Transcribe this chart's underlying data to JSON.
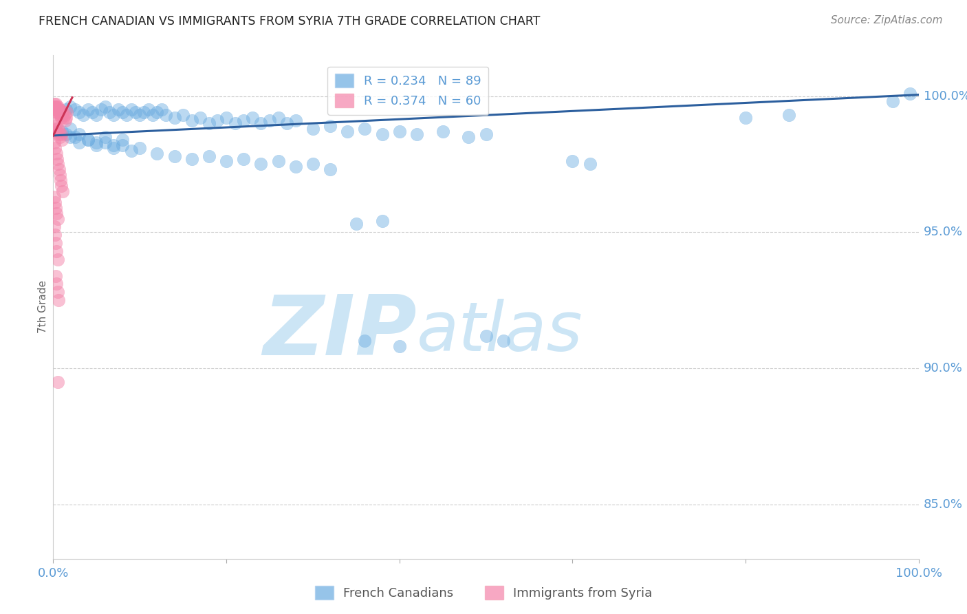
{
  "title": "FRENCH CANADIAN VS IMMIGRANTS FROM SYRIA 7TH GRADE CORRELATION CHART",
  "source": "Source: ZipAtlas.com",
  "ylabel": "7th Grade",
  "right_ytick_labels": [
    "100.0%",
    "95.0%",
    "90.0%",
    "85.0%"
  ],
  "right_ytick_vals": [
    100.0,
    95.0,
    90.0,
    85.0
  ],
  "legend_labels_bottom": [
    "French Canadians",
    "Immigrants from Syria"
  ],
  "blue_color": "#6aabe0",
  "pink_color": "#f484aa",
  "trendline_blue": "#2c5f9e",
  "trendline_pink": "#cc3355",
  "watermark_zip": "ZIP",
  "watermark_atlas": "atlas",
  "watermark_color": "#cce5f5",
  "axis_color": "#5b9bd5",
  "grid_color": "#cccccc",
  "xlim": [
    0,
    100
  ],
  "ylim": [
    83.0,
    101.5
  ],
  "blue_trendline_x": [
    0,
    100
  ],
  "blue_trendline_y": [
    98.55,
    100.05
  ],
  "pink_trendline_x": [
    0.0,
    2.2
  ],
  "pink_trendline_y": [
    98.55,
    99.95
  ],
  "blue_scatter": [
    [
      1.0,
      99.4
    ],
    [
      1.5,
      99.5
    ],
    [
      2.0,
      99.6
    ],
    [
      2.5,
      99.5
    ],
    [
      3.0,
      99.4
    ],
    [
      3.5,
      99.3
    ],
    [
      4.0,
      99.5
    ],
    [
      4.5,
      99.4
    ],
    [
      5.0,
      99.3
    ],
    [
      5.5,
      99.5
    ],
    [
      6.0,
      99.6
    ],
    [
      6.5,
      99.4
    ],
    [
      7.0,
      99.3
    ],
    [
      7.5,
      99.5
    ],
    [
      8.0,
      99.4
    ],
    [
      8.5,
      99.3
    ],
    [
      9.0,
      99.5
    ],
    [
      9.5,
      99.4
    ],
    [
      10.0,
      99.3
    ],
    [
      10.5,
      99.4
    ],
    [
      11.0,
      99.5
    ],
    [
      11.5,
      99.3
    ],
    [
      12.0,
      99.4
    ],
    [
      12.5,
      99.5
    ],
    [
      13.0,
      99.3
    ],
    [
      14.0,
      99.2
    ],
    [
      15.0,
      99.3
    ],
    [
      16.0,
      99.1
    ],
    [
      17.0,
      99.2
    ],
    [
      18.0,
      99.0
    ],
    [
      19.0,
      99.1
    ],
    [
      20.0,
      99.2
    ],
    [
      21.0,
      99.0
    ],
    [
      22.0,
      99.1
    ],
    [
      23.0,
      99.2
    ],
    [
      24.0,
      99.0
    ],
    [
      25.0,
      99.1
    ],
    [
      26.0,
      99.2
    ],
    [
      27.0,
      99.0
    ],
    [
      28.0,
      99.1
    ],
    [
      30.0,
      98.8
    ],
    [
      32.0,
      98.9
    ],
    [
      34.0,
      98.7
    ],
    [
      36.0,
      98.8
    ],
    [
      38.0,
      98.6
    ],
    [
      40.0,
      98.7
    ],
    [
      42.0,
      98.6
    ],
    [
      45.0,
      98.7
    ],
    [
      48.0,
      98.5
    ],
    [
      50.0,
      98.6
    ],
    [
      2.0,
      98.5
    ],
    [
      3.0,
      98.3
    ],
    [
      4.0,
      98.4
    ],
    [
      5.0,
      98.2
    ],
    [
      6.0,
      98.3
    ],
    [
      7.0,
      98.1
    ],
    [
      8.0,
      98.2
    ],
    [
      9.0,
      98.0
    ],
    [
      10.0,
      98.1
    ],
    [
      12.0,
      97.9
    ],
    [
      14.0,
      97.8
    ],
    [
      16.0,
      97.7
    ],
    [
      18.0,
      97.8
    ],
    [
      20.0,
      97.6
    ],
    [
      22.0,
      97.7
    ],
    [
      24.0,
      97.5
    ],
    [
      26.0,
      97.6
    ],
    [
      28.0,
      97.4
    ],
    [
      30.0,
      97.5
    ],
    [
      32.0,
      97.3
    ],
    [
      35.0,
      95.3
    ],
    [
      38.0,
      95.4
    ],
    [
      36.0,
      91.0
    ],
    [
      40.0,
      90.8
    ],
    [
      50.0,
      91.2
    ],
    [
      52.0,
      91.0
    ],
    [
      60.0,
      97.6
    ],
    [
      62.0,
      97.5
    ],
    [
      80.0,
      99.2
    ],
    [
      85.0,
      99.3
    ],
    [
      99.0,
      100.1
    ],
    [
      97.0,
      99.8
    ],
    [
      1.0,
      98.7
    ],
    [
      1.5,
      98.6
    ],
    [
      2.0,
      98.8
    ],
    [
      2.5,
      98.5
    ],
    [
      3.0,
      98.6
    ],
    [
      4.0,
      98.4
    ],
    [
      5.0,
      98.3
    ],
    [
      6.0,
      98.5
    ],
    [
      7.0,
      98.2
    ],
    [
      8.0,
      98.4
    ]
  ],
  "pink_scatter": [
    [
      0.1,
      99.6
    ],
    [
      0.15,
      99.7
    ],
    [
      0.2,
      99.5
    ],
    [
      0.25,
      99.6
    ],
    [
      0.3,
      99.7
    ],
    [
      0.35,
      99.5
    ],
    [
      0.4,
      99.6
    ],
    [
      0.45,
      99.4
    ],
    [
      0.5,
      99.5
    ],
    [
      0.55,
      99.6
    ],
    [
      0.6,
      99.4
    ],
    [
      0.65,
      99.5
    ],
    [
      0.7,
      99.3
    ],
    [
      0.75,
      99.4
    ],
    [
      0.8,
      99.5
    ],
    [
      0.85,
      99.3
    ],
    [
      0.9,
      99.4
    ],
    [
      0.95,
      99.2
    ],
    [
      1.0,
      99.3
    ],
    [
      1.1,
      99.4
    ],
    [
      1.2,
      99.2
    ],
    [
      1.3,
      99.3
    ],
    [
      1.4,
      99.1
    ],
    [
      1.5,
      99.2
    ],
    [
      1.6,
      99.4
    ],
    [
      0.1,
      99.0
    ],
    [
      0.2,
      98.8
    ],
    [
      0.3,
      98.9
    ],
    [
      0.4,
      98.7
    ],
    [
      0.5,
      98.8
    ],
    [
      0.6,
      98.6
    ],
    [
      0.7,
      98.7
    ],
    [
      0.8,
      98.5
    ],
    [
      0.9,
      98.6
    ],
    [
      1.0,
      98.4
    ],
    [
      0.15,
      98.3
    ],
    [
      0.25,
      98.1
    ],
    [
      0.35,
      97.9
    ],
    [
      0.45,
      97.7
    ],
    [
      0.55,
      97.5
    ],
    [
      0.65,
      97.3
    ],
    [
      0.75,
      97.1
    ],
    [
      0.85,
      96.9
    ],
    [
      0.95,
      96.7
    ],
    [
      1.05,
      96.5
    ],
    [
      0.1,
      96.3
    ],
    [
      0.2,
      96.1
    ],
    [
      0.3,
      95.9
    ],
    [
      0.4,
      95.7
    ],
    [
      0.5,
      95.5
    ],
    [
      0.1,
      95.2
    ],
    [
      0.2,
      94.9
    ],
    [
      0.3,
      94.6
    ],
    [
      0.4,
      94.3
    ],
    [
      0.5,
      94.0
    ],
    [
      0.3,
      93.4
    ],
    [
      0.4,
      93.1
    ],
    [
      0.5,
      92.8
    ],
    [
      0.6,
      92.5
    ],
    [
      0.5,
      89.5
    ]
  ]
}
